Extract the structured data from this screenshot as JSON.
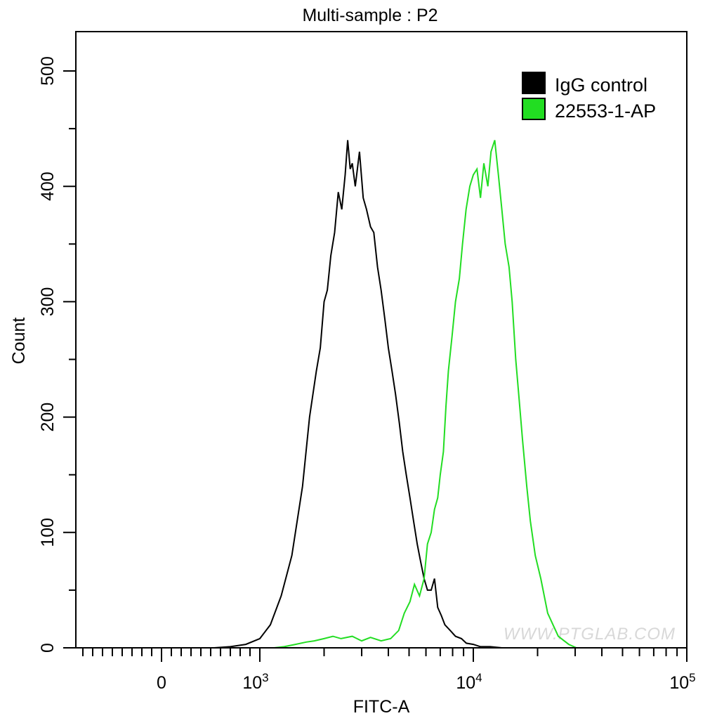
{
  "chart_data": {
    "type": "line",
    "title": "Multi-sample : P2",
    "xlabel": "FITC-A",
    "ylabel": "Count",
    "x_scale": "biexponential",
    "xlim": [
      -870,
      100000
    ],
    "ylim": [
      0,
      530
    ],
    "x_ticks": [
      {
        "value": 0,
        "label": "0",
        "sup": ""
      },
      {
        "value": 1000,
        "label": "10",
        "sup": "3"
      },
      {
        "value": 10000,
        "label": "10",
        "sup": "4"
      },
      {
        "value": 100000,
        "label": "10",
        "sup": "5"
      }
    ],
    "y_ticks": [
      0,
      100,
      200,
      300,
      400,
      500
    ],
    "grid": false,
    "legend_position": "top-right",
    "watermark": "WWW.PTGLAB.COM",
    "series": [
      {
        "name": "IgG control",
        "color": "#000000",
        "x": [
          536,
          700,
          857,
          1000,
          1120,
          1259,
          1413,
          1585,
          1710,
          1840,
          1920,
          2000,
          2070,
          2150,
          2240,
          2330,
          2420,
          2510,
          2580,
          2650,
          2710,
          2800,
          2930,
          3050,
          3160,
          3300,
          3420,
          3560,
          3700,
          3850,
          4000,
          4160,
          4320,
          4500,
          4670,
          4850,
          5050,
          5250,
          5460,
          5660,
          5880,
          6100,
          6350,
          6580,
          6810,
          7080,
          7360,
          7800,
          8250,
          8800,
          9270,
          10000,
          10800,
          12000,
          13600
        ],
        "y": [
          0,
          1,
          3,
          8,
          20,
          45,
          80,
          140,
          200,
          240,
          260,
          300,
          310,
          340,
          360,
          395,
          380,
          410,
          440,
          415,
          420,
          400,
          430,
          390,
          380,
          365,
          360,
          330,
          310,
          285,
          260,
          240,
          220,
          195,
          170,
          150,
          130,
          110,
          90,
          75,
          60,
          50,
          50,
          60,
          35,
          28,
          20,
          15,
          10,
          8,
          4,
          3,
          1,
          1,
          0
        ]
      },
      {
        "name": "22553-1-AP",
        "color": "#22dd22",
        "x": [
          1166,
          1300,
          1468,
          1650,
          1800,
          2000,
          2200,
          2400,
          2710,
          3000,
          3300,
          3700,
          4100,
          4470,
          4750,
          5050,
          5300,
          5600,
          5880,
          6100,
          6350,
          6580,
          6810,
          7000,
          7240,
          7450,
          7640,
          7950,
          8250,
          8600,
          8900,
          9250,
          9630,
          10000,
          10400,
          10800,
          11200,
          11700,
          12100,
          12600,
          13100,
          13600,
          14100,
          14700,
          15200,
          15800,
          16400,
          17000,
          17800,
          18500,
          19500,
          20700,
          22300,
          25000,
          28000,
          30400
        ],
        "y": [
          0,
          1,
          3,
          5,
          6,
          8,
          10,
          8,
          10,
          6,
          9,
          6,
          8,
          15,
          30,
          40,
          55,
          45,
          60,
          90,
          100,
          120,
          130,
          150,
          170,
          210,
          240,
          270,
          300,
          320,
          350,
          380,
          400,
          410,
          415,
          390,
          420,
          400,
          430,
          440,
          410,
          380,
          350,
          330,
          300,
          250,
          215,
          180,
          140,
          110,
          80,
          60,
          30,
          10,
          3,
          0
        ]
      }
    ]
  }
}
